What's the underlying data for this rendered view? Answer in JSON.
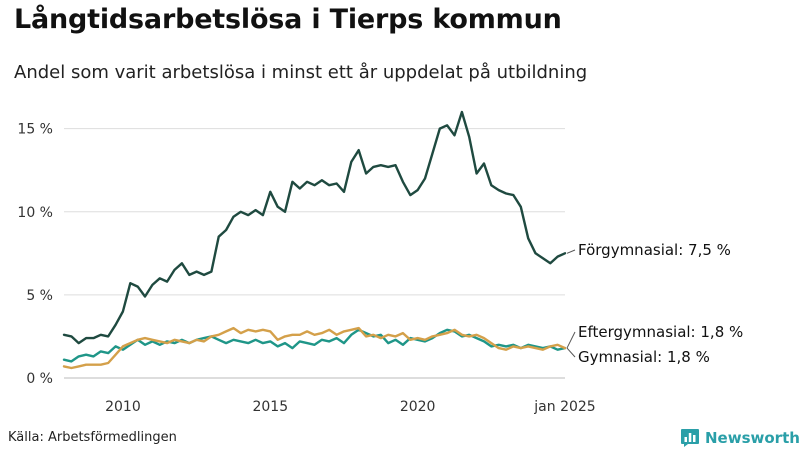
{
  "header": {
    "title": "Långtidsarbetslösa i Tierps kommun",
    "subtitle": "Andel som varit arbetslösa i minst ett år uppdelat på utbildning"
  },
  "footer": {
    "source": "Källa: Arbetsförmedlingen",
    "brand": "Newsworthy"
  },
  "colors": {
    "forgymnasial": "#1f4a40",
    "eftergymnasial": "#1f9688",
    "gymnasial": "#d4a04a",
    "grid": "#dddddd",
    "brand": "#2a9fa8"
  },
  "icons": {
    "brand_logo": "bar-chart-badge-icon"
  },
  "chart_data": {
    "type": "line",
    "title": "Långtidsarbetslösa i Tierps kommun",
    "subtitle": "Andel som varit arbetslösa i minst ett år uppdelat på utbildning",
    "xlabel": "",
    "ylabel": "",
    "ylim": [
      0,
      16
    ],
    "yticks": [
      0,
      5,
      10,
      15
    ],
    "ytick_labels": [
      "0 %",
      "5 %",
      "10 %",
      "15 %"
    ],
    "xlim": [
      "2008-01",
      "2025-01"
    ],
    "xticks": [
      "2010-01",
      "2015-01",
      "2020-01",
      "2025-01"
    ],
    "xtick_labels": [
      "2010",
      "2015",
      "2020",
      "jan 2025"
    ],
    "grid": "horizontal",
    "legend": "direct labels at line ends",
    "series": [
      {
        "key": "forgymnasial",
        "label": "Förgymnasial: 7,5 %",
        "points": [
          [
            "2008-01",
            2.6
          ],
          [
            "2008-04",
            2.5
          ],
          [
            "2008-07",
            2.1
          ],
          [
            "2008-10",
            2.4
          ],
          [
            "2009-01",
            2.4
          ],
          [
            "2009-04",
            2.6
          ],
          [
            "2009-07",
            2.5
          ],
          [
            "2009-10",
            3.2
          ],
          [
            "2010-01",
            4.0
          ],
          [
            "2010-04",
            5.7
          ],
          [
            "2010-07",
            5.5
          ],
          [
            "2010-10",
            4.9
          ],
          [
            "2011-01",
            5.6
          ],
          [
            "2011-04",
            6.0
          ],
          [
            "2011-07",
            5.8
          ],
          [
            "2011-10",
            6.5
          ],
          [
            "2012-01",
            6.9
          ],
          [
            "2012-04",
            6.2
          ],
          [
            "2012-07",
            6.4
          ],
          [
            "2012-10",
            6.2
          ],
          [
            "2013-01",
            6.4
          ],
          [
            "2013-04",
            8.5
          ],
          [
            "2013-07",
            8.9
          ],
          [
            "2013-10",
            9.7
          ],
          [
            "2014-01",
            10.0
          ],
          [
            "2014-04",
            9.8
          ],
          [
            "2014-07",
            10.1
          ],
          [
            "2014-10",
            9.8
          ],
          [
            "2015-01",
            11.2
          ],
          [
            "2015-04",
            10.3
          ],
          [
            "2015-07",
            10.0
          ],
          [
            "2015-10",
            11.8
          ],
          [
            "2016-01",
            11.4
          ],
          [
            "2016-04",
            11.8
          ],
          [
            "2016-07",
            11.6
          ],
          [
            "2016-10",
            11.9
          ],
          [
            "2017-01",
            11.6
          ],
          [
            "2017-04",
            11.7
          ],
          [
            "2017-07",
            11.2
          ],
          [
            "2017-10",
            13.0
          ],
          [
            "2018-01",
            13.7
          ],
          [
            "2018-04",
            12.3
          ],
          [
            "2018-07",
            12.7
          ],
          [
            "2018-10",
            12.8
          ],
          [
            "2019-01",
            12.7
          ],
          [
            "2019-04",
            12.8
          ],
          [
            "2019-07",
            11.8
          ],
          [
            "2019-10",
            11.0
          ],
          [
            "2020-01",
            11.3
          ],
          [
            "2020-04",
            12.0
          ],
          [
            "2020-07",
            13.5
          ],
          [
            "2020-10",
            15.0
          ],
          [
            "2021-01",
            15.2
          ],
          [
            "2021-04",
            14.6
          ],
          [
            "2021-07",
            16.0
          ],
          [
            "2021-10",
            14.5
          ],
          [
            "2022-01",
            12.3
          ],
          [
            "2022-04",
            12.9
          ],
          [
            "2022-07",
            11.6
          ],
          [
            "2022-10",
            11.3
          ],
          [
            "2023-01",
            11.1
          ],
          [
            "2023-04",
            11.0
          ],
          [
            "2023-07",
            10.3
          ],
          [
            "2023-10",
            8.4
          ],
          [
            "2024-01",
            7.5
          ],
          [
            "2024-04",
            7.2
          ],
          [
            "2024-07",
            6.9
          ],
          [
            "2024-10",
            7.3
          ],
          [
            "2025-01",
            7.5
          ]
        ]
      },
      {
        "key": "eftergymnasial",
        "label": "Eftergymnasial: 1,8 %",
        "points": [
          [
            "2008-01",
            1.1
          ],
          [
            "2008-04",
            1.0
          ],
          [
            "2008-07",
            1.3
          ],
          [
            "2008-10",
            1.4
          ],
          [
            "2009-01",
            1.3
          ],
          [
            "2009-04",
            1.6
          ],
          [
            "2009-07",
            1.5
          ],
          [
            "2009-10",
            1.9
          ],
          [
            "2010-01",
            1.7
          ],
          [
            "2010-04",
            2.0
          ],
          [
            "2010-07",
            2.3
          ],
          [
            "2010-10",
            2.0
          ],
          [
            "2011-01",
            2.2
          ],
          [
            "2011-04",
            2.0
          ],
          [
            "2011-07",
            2.2
          ],
          [
            "2011-10",
            2.1
          ],
          [
            "2012-01",
            2.3
          ],
          [
            "2012-04",
            2.1
          ],
          [
            "2012-07",
            2.3
          ],
          [
            "2012-10",
            2.4
          ],
          [
            "2013-01",
            2.5
          ],
          [
            "2013-04",
            2.3
          ],
          [
            "2013-07",
            2.1
          ],
          [
            "2013-10",
            2.3
          ],
          [
            "2014-01",
            2.2
          ],
          [
            "2014-04",
            2.1
          ],
          [
            "2014-07",
            2.3
          ],
          [
            "2014-10",
            2.1
          ],
          [
            "2015-01",
            2.2
          ],
          [
            "2015-04",
            1.9
          ],
          [
            "2015-07",
            2.1
          ],
          [
            "2015-10",
            1.8
          ],
          [
            "2016-01",
            2.2
          ],
          [
            "2016-04",
            2.1
          ],
          [
            "2016-07",
            2.0
          ],
          [
            "2016-10",
            2.3
          ],
          [
            "2017-01",
            2.2
          ],
          [
            "2017-04",
            2.4
          ],
          [
            "2017-07",
            2.1
          ],
          [
            "2017-10",
            2.6
          ],
          [
            "2018-01",
            2.9
          ],
          [
            "2018-04",
            2.7
          ],
          [
            "2018-07",
            2.5
          ],
          [
            "2018-10",
            2.6
          ],
          [
            "2019-01",
            2.1
          ],
          [
            "2019-04",
            2.3
          ],
          [
            "2019-07",
            2.0
          ],
          [
            "2019-10",
            2.4
          ],
          [
            "2020-01",
            2.3
          ],
          [
            "2020-04",
            2.2
          ],
          [
            "2020-07",
            2.4
          ],
          [
            "2020-10",
            2.7
          ],
          [
            "2021-01",
            2.9
          ],
          [
            "2021-04",
            2.8
          ],
          [
            "2021-07",
            2.5
          ],
          [
            "2021-10",
            2.6
          ],
          [
            "2022-01",
            2.4
          ],
          [
            "2022-04",
            2.2
          ],
          [
            "2022-07",
            1.9
          ],
          [
            "2022-10",
            2.0
          ],
          [
            "2023-01",
            1.9
          ],
          [
            "2023-04",
            2.0
          ],
          [
            "2023-07",
            1.8
          ],
          [
            "2023-10",
            2.0
          ],
          [
            "2024-01",
            1.9
          ],
          [
            "2024-04",
            1.8
          ],
          [
            "2024-07",
            1.9
          ],
          [
            "2024-10",
            1.7
          ],
          [
            "2025-01",
            1.8
          ]
        ]
      },
      {
        "key": "gymnasial",
        "label": "Gymnasial: 1,8 %",
        "points": [
          [
            "2008-01",
            0.7
          ],
          [
            "2008-04",
            0.6
          ],
          [
            "2008-07",
            0.7
          ],
          [
            "2008-10",
            0.8
          ],
          [
            "2009-01",
            0.8
          ],
          [
            "2009-04",
            0.8
          ],
          [
            "2009-07",
            0.9
          ],
          [
            "2009-10",
            1.4
          ],
          [
            "2010-01",
            1.9
          ],
          [
            "2010-04",
            2.1
          ],
          [
            "2010-07",
            2.3
          ],
          [
            "2010-10",
            2.4
          ],
          [
            "2011-01",
            2.3
          ],
          [
            "2011-04",
            2.2
          ],
          [
            "2011-07",
            2.1
          ],
          [
            "2011-10",
            2.3
          ],
          [
            "2012-01",
            2.2
          ],
          [
            "2012-04",
            2.1
          ],
          [
            "2012-07",
            2.3
          ],
          [
            "2012-10",
            2.2
          ],
          [
            "2013-01",
            2.5
          ],
          [
            "2013-04",
            2.6
          ],
          [
            "2013-07",
            2.8
          ],
          [
            "2013-10",
            3.0
          ],
          [
            "2014-01",
            2.7
          ],
          [
            "2014-04",
            2.9
          ],
          [
            "2014-07",
            2.8
          ],
          [
            "2014-10",
            2.9
          ],
          [
            "2015-01",
            2.8
          ],
          [
            "2015-04",
            2.3
          ],
          [
            "2015-07",
            2.5
          ],
          [
            "2015-10",
            2.6
          ],
          [
            "2016-01",
            2.6
          ],
          [
            "2016-04",
            2.8
          ],
          [
            "2016-07",
            2.6
          ],
          [
            "2016-10",
            2.7
          ],
          [
            "2017-01",
            2.9
          ],
          [
            "2017-04",
            2.6
          ],
          [
            "2017-07",
            2.8
          ],
          [
            "2017-10",
            2.9
          ],
          [
            "2018-01",
            3.0
          ],
          [
            "2018-04",
            2.5
          ],
          [
            "2018-07",
            2.6
          ],
          [
            "2018-10",
            2.4
          ],
          [
            "2019-01",
            2.6
          ],
          [
            "2019-04",
            2.5
          ],
          [
            "2019-07",
            2.7
          ],
          [
            "2019-10",
            2.3
          ],
          [
            "2020-01",
            2.4
          ],
          [
            "2020-04",
            2.3
          ],
          [
            "2020-07",
            2.5
          ],
          [
            "2020-10",
            2.6
          ],
          [
            "2021-01",
            2.7
          ],
          [
            "2021-04",
            2.9
          ],
          [
            "2021-07",
            2.6
          ],
          [
            "2021-10",
            2.5
          ],
          [
            "2022-01",
            2.6
          ],
          [
            "2022-04",
            2.4
          ],
          [
            "2022-07",
            2.1
          ],
          [
            "2022-10",
            1.8
          ],
          [
            "2023-01",
            1.7
          ],
          [
            "2023-04",
            1.9
          ],
          [
            "2023-07",
            1.8
          ],
          [
            "2023-10",
            1.9
          ],
          [
            "2024-01",
            1.8
          ],
          [
            "2024-04",
            1.7
          ],
          [
            "2024-07",
            1.9
          ],
          [
            "2024-10",
            2.0
          ],
          [
            "2025-01",
            1.8
          ]
        ]
      }
    ]
  }
}
